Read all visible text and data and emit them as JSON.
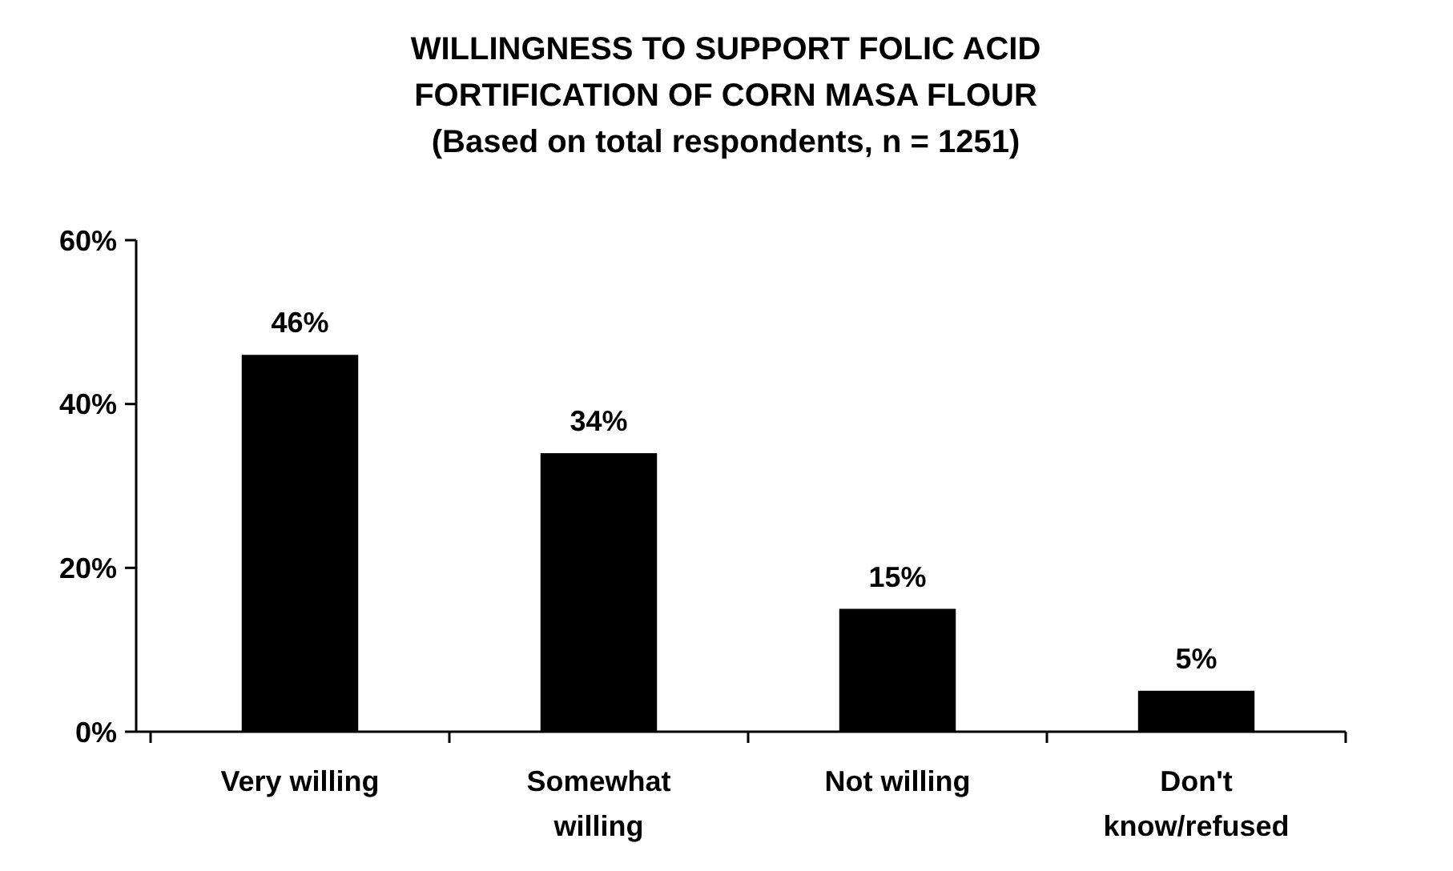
{
  "chart_data": {
    "type": "bar",
    "title": "WILLINGNESS TO SUPPORT FOLIC ACID\nFORTIFICATION OF CORN MASA FLOUR\n(Based on total respondents, n = 1251)",
    "categories": [
      "Very willing",
      "Somewhat willing",
      "Not willing",
      "Don't know/refused"
    ],
    "values": [
      46,
      34,
      15,
      5
    ],
    "value_labels": [
      "46%",
      "34%",
      "15%",
      "5%"
    ],
    "color": "#000000",
    "ylim": [
      0,
      60
    ],
    "yticks": [
      {
        "value": 0,
        "label": "0%"
      },
      {
        "value": 20,
        "label": "20%"
      },
      {
        "value": 40,
        "label": "40%"
      },
      {
        "value": 60,
        "label": "60%"
      }
    ],
    "grid": false
  }
}
